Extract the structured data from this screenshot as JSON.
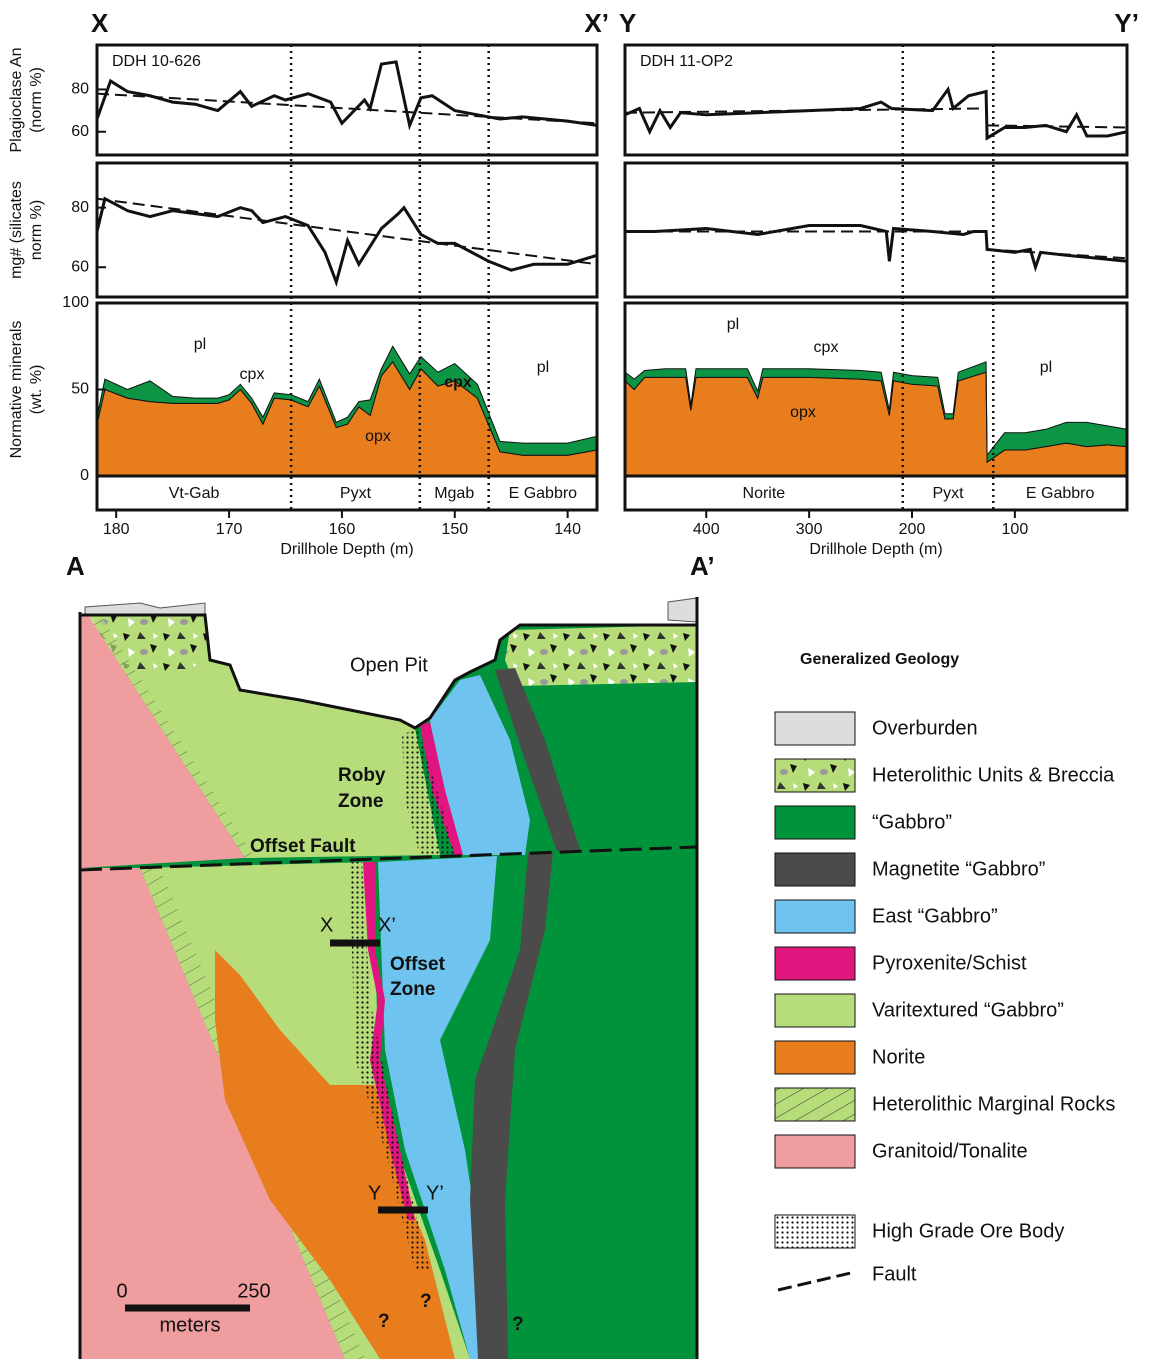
{
  "chart_data": [
    {
      "type": "well-log",
      "title": "DDH 10-626",
      "section_start": "X",
      "section_end": "X’",
      "xlabel": "Drillhole Depth (m)",
      "xlim": [
        181.7,
        137.4
      ],
      "xticks": [
        180,
        170,
        160,
        150,
        140
      ],
      "faults": [
        164.5,
        153.1,
        147.0
      ],
      "units": [
        "Vt-Gab",
        "Pyxt",
        "Mgab",
        "E Gabbro"
      ],
      "panels": [
        {
          "ylabel": [
            "Plagioclase An",
            "(norm %)"
          ],
          "ylim": [
            49,
            101
          ],
          "yticks": [
            60,
            80
          ],
          "lines": [
            {
              "x": [
                181.7,
                180.5,
                179,
                177,
                175,
                173,
                171,
                169,
                168,
                166,
                165,
                163,
                161,
                160,
                158,
                157.5,
                156.5,
                155.2,
                154,
                153,
                152,
                150,
                148,
                146,
                144,
                142,
                140,
                137.4
              ],
              "values": [
                66,
                84,
                79,
                77,
                74,
                73,
                70,
                79,
                72,
                77,
                75,
                78,
                74,
                64,
                75,
                71,
                92,
                93,
                63,
                76,
                77,
                70,
                68,
                66,
                67,
                66,
                65,
                63
              ],
              "dash": false
            },
            {
              "x": [
                181.7,
                137.4
              ],
              "values": [
                78,
                64
              ],
              "dash": true
            }
          ]
        },
        {
          "ylabel": [
            "mg# (silicates",
            "norm %)"
          ],
          "ylim": [
            50,
            95
          ],
          "yticks": [
            60,
            80
          ],
          "lines": [
            {
              "x": [
                181.7,
                181,
                179,
                177,
                175,
                173,
                171,
                169,
                168,
                167,
                165,
                163,
                161.5,
                160.5,
                159.5,
                158.5,
                156.5,
                155,
                154.5,
                153,
                151.5,
                150,
                148,
                147,
                145,
                143,
                140,
                137.4
              ],
              "values": [
                72,
                83,
                79,
                77,
                79,
                78,
                77,
                80,
                79,
                75,
                77,
                74,
                65,
                55,
                69,
                61,
                73,
                78,
                80,
                71,
                68,
                68,
                64,
                62,
                59,
                61,
                61,
                64
              ],
              "dash": false
            },
            {
              "x": [
                181.7,
                137.4
              ],
              "values": [
                83,
                61
              ],
              "dash": true
            }
          ]
        },
        {
          "ylabel": [
            "Normative minerals",
            "(wt. %)"
          ],
          "ylim": [
            0,
            100
          ],
          "yticks": [
            0,
            50,
            100
          ],
          "remainder": "pl",
          "x": [
            181.7,
            181,
            179,
            177,
            175,
            173,
            171,
            170,
            169,
            168,
            167,
            166,
            164.5,
            163,
            162,
            160.5,
            159.5,
            158.5,
            157.5,
            156.5,
            155.5,
            154,
            153,
            151.5,
            150,
            148,
            146,
            144,
            142,
            140,
            137.4
          ],
          "series": [
            {
              "name": "opx",
              "color": "#e87d1e",
              "values": [
                30,
                50,
                45,
                43,
                42,
                42,
                42,
                44,
                50,
                42,
                30,
                45,
                44,
                40,
                52,
                28,
                30,
                40,
                35,
                58,
                66,
                50,
                62,
                52,
                55,
                45,
                14,
                12,
                12,
                12,
                15
              ]
            },
            {
              "name": "cpx",
              "color": "#0d9444",
              "values": [
                4,
                6,
                5,
                12,
                4,
                3,
                3,
                3,
                3,
                3,
                4,
                3,
                3,
                3,
                4,
                3,
                4,
                3,
                9,
                4,
                9,
                9,
                7,
                8,
                10,
                8,
                6,
                7,
                7,
                7,
                8
              ]
            }
          ]
        }
      ]
    },
    {
      "type": "well-log",
      "title": "DDH 11-OP2",
      "section_start": "Y",
      "section_end": "Y’",
      "xlabel": "Drillhole Depth (m)",
      "xlim": [
        479,
        -9
      ],
      "xticks": [
        400,
        300,
        200,
        100
      ],
      "faults": [
        209,
        121
      ],
      "units": [
        "Norite",
        "Pyxt",
        "E Gabbro"
      ],
      "panels": [
        {
          "ylim": [
            49,
            101
          ],
          "lines": [
            {
              "x": [
                479,
                465,
                455,
                445,
                435,
                425,
                400,
                350,
                300,
                250,
                230,
                220,
                180,
                165,
                160,
                145,
                128,
                127,
                110,
                90,
                70,
                50,
                40,
                30,
                10,
                -9
              ],
              "values": [
                68,
                71,
                60,
                70,
                62,
                69,
                68,
                69,
                70,
                71,
                74,
                71,
                70,
                80,
                71,
                77,
                79,
                57,
                62,
                62,
                63,
                60,
                68,
                58,
                58,
                60
              ],
              "dash": false
            },
            {
              "x": [
                479,
                128
              ],
              "values": [
                69,
                71
              ],
              "dash": true
            },
            {
              "x": [
                127,
                -9
              ],
              "values": [
                63,
                62
              ],
              "dash": true
            }
          ]
        },
        {
          "ylim": [
            50,
            95
          ],
          "lines": [
            {
              "x": [
                479,
                450,
                400,
                350,
                300,
                250,
                225,
                222,
                218,
                180,
                150,
                140,
                128,
                127,
                100,
                85,
                80,
                75,
                50,
                20,
                -9
              ],
              "values": [
                72,
                72,
                73,
                71,
                74,
                74,
                72,
                62,
                73,
                72,
                71,
                72,
                72,
                66,
                65,
                66,
                60,
                65,
                64,
                63,
                62
              ],
              "dash": false
            },
            {
              "x": [
                479,
                128
              ],
              "values": [
                72,
                72
              ],
              "dash": true
            },
            {
              "x": [
                127,
                -9
              ],
              "values": [
                66,
                63
              ],
              "dash": true
            }
          ]
        },
        {
          "ylim": [
            0,
            100
          ],
          "remainder": "pl",
          "x": [
            479,
            470,
            460,
            440,
            420,
            415,
            410,
            360,
            350,
            345,
            300,
            250,
            230,
            222,
            218,
            200,
            175,
            168,
            160,
            155,
            128,
            127,
            110,
            90,
            70,
            50,
            30,
            10,
            -9
          ],
          "series": [
            {
              "name": "opx",
              "color": "#e87d1e",
              "values": [
                55,
                50,
                57,
                57,
                57,
                38,
                57,
                57,
                45,
                57,
                57,
                56,
                55,
                35,
                55,
                53,
                52,
                33,
                33,
                55,
                60,
                8,
                15,
                15,
                17,
                19,
                17,
                18,
                17
              ]
            },
            {
              "name": "cpx",
              "color": "#0d9444",
              "values": [
                5,
                6,
                4,
                5,
                5,
                3,
                5,
                5,
                4,
                5,
                5,
                5,
                5,
                3,
                5,
                5,
                5,
                3,
                3,
                5,
                6,
                4,
                10,
                10,
                10,
                12,
                14,
                11,
                10
              ]
            }
          ]
        }
      ]
    }
  ],
  "cross_section": {
    "start": "A",
    "end": "A’",
    "open_pit": "Open Pit",
    "roby_zone": [
      "Roby",
      "Zone"
    ],
    "offset_fault": "Offset Fault",
    "offset_zone": [
      "Offset",
      "Zone"
    ],
    "x_start": "X",
    "x_end": "X’",
    "y_start": "Y",
    "y_end": "Y’",
    "unknown": "?",
    "scale": {
      "ticks": [
        0,
        250
      ],
      "unit": "meters"
    }
  },
  "legend": {
    "title": "Generalized Geology",
    "items": [
      "Overburden",
      "Heterolithic Units & Breccia",
      "“Gabbro”",
      "Magnetite “Gabbro”",
      "East “Gabbro”",
      "Pyroxenite/Schist",
      "Varitextured “Gabbro”",
      "Norite",
      "Heterolithic Marginal Rocks",
      "Granitoid/Tonalite"
    ],
    "ore": "High Grade Ore Body",
    "fault": "Fault"
  }
}
